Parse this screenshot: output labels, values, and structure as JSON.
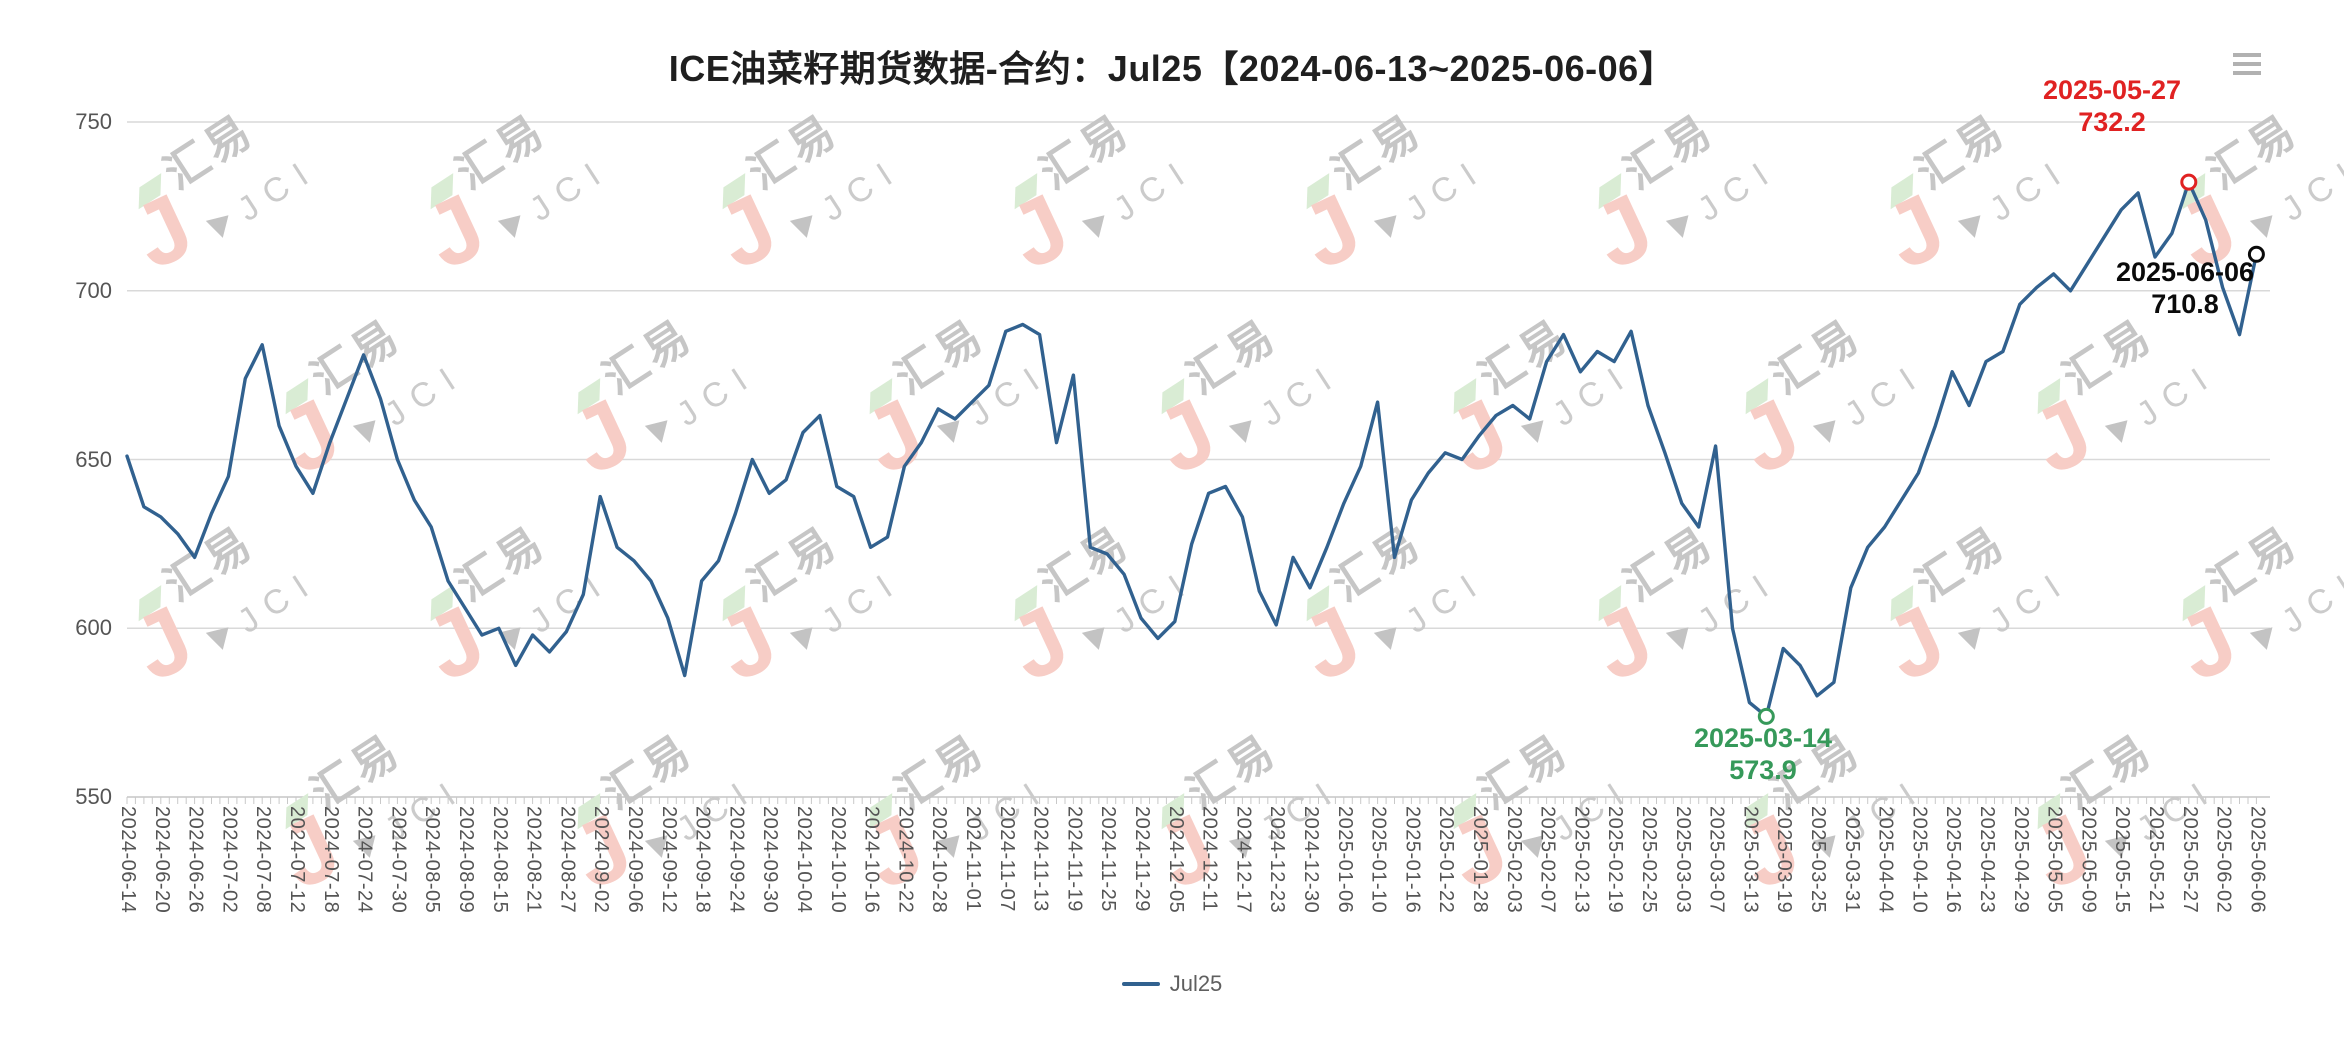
{
  "title": "ICE油菜籽期货数据-合约：Jul25【2024-06-13~2025-06-06】",
  "icons": {
    "menu": "hamburger-menu-icon"
  },
  "watermark": {
    "cn": "汇易",
    "en": "JCI"
  },
  "legend": {
    "label": "Jul25",
    "color": "#31618f"
  },
  "annotations": {
    "max": {
      "date": "2025-05-27",
      "value": 732.2,
      "color": "#e02222"
    },
    "min": {
      "date": "2025-03-14",
      "value": 573.9,
      "color": "#36995a"
    },
    "last": {
      "date": "2025-06-06",
      "value": 710.8,
      "color": "#0a0a0a"
    }
  },
  "chart_data": {
    "type": "line",
    "series_name": "Jul25",
    "title": "ICE油菜籽期货数据-合约：Jul25【2024-06-13~2025-06-06】",
    "ylim": [
      550,
      750
    ],
    "yticks": [
      750,
      700,
      650,
      600,
      550
    ],
    "grid": true,
    "legend_position": "bottom",
    "line_color": "#31618f",
    "x_tick_labels": [
      "2024-06-14",
      "2024-06-20",
      "2024-06-26",
      "2024-07-02",
      "2024-07-08",
      "2024-07-12",
      "2024-07-18",
      "2024-07-24",
      "2024-07-30",
      "2024-08-05",
      "2024-08-09",
      "2024-08-15",
      "2024-08-21",
      "2024-08-27",
      "2024-09-02",
      "2024-09-06",
      "2024-09-12",
      "2024-09-18",
      "2024-09-24",
      "2024-09-30",
      "2024-10-04",
      "2024-10-10",
      "2024-10-16",
      "2024-10-22",
      "2024-10-28",
      "2024-11-01",
      "2024-11-07",
      "2024-11-13",
      "2024-11-19",
      "2024-11-25",
      "2024-11-29",
      "2024-12-05",
      "2024-12-11",
      "2024-12-17",
      "2024-12-23",
      "2024-12-30",
      "2025-01-06",
      "2025-01-10",
      "2025-01-16",
      "2025-01-22",
      "2025-01-28",
      "2025-02-03",
      "2025-02-07",
      "2025-02-13",
      "2025-02-19",
      "2025-02-25",
      "2025-03-03",
      "2025-03-07",
      "2025-03-13",
      "2025-03-19",
      "2025-03-25",
      "2025-03-31",
      "2025-04-04",
      "2025-04-10",
      "2025-04-16",
      "2025-04-23",
      "2025-04-29",
      "2025-05-05",
      "2025-05-09",
      "2025-05-15",
      "2025-05-21",
      "2025-05-27",
      "2025-06-02",
      "2025-06-06"
    ],
    "points": [
      {
        "d": "2024-06-14",
        "v": 651
      },
      {
        "d": "2024-06-18",
        "v": 636
      },
      {
        "d": "2024-06-20",
        "v": 633
      },
      {
        "d": "2024-06-24",
        "v": 628
      },
      {
        "d": "2024-06-26",
        "v": 621
      },
      {
        "d": "2024-06-28",
        "v": 634
      },
      {
        "d": "2024-07-02",
        "v": 645
      },
      {
        "d": "2024-07-04",
        "v": 674
      },
      {
        "d": "2024-07-08",
        "v": 684
      },
      {
        "d": "2024-07-10",
        "v": 660
      },
      {
        "d": "2024-07-12",
        "v": 648
      },
      {
        "d": "2024-07-16",
        "v": 640
      },
      {
        "d": "2024-07-18",
        "v": 655
      },
      {
        "d": "2024-07-22",
        "v": 668
      },
      {
        "d": "2024-07-24",
        "v": 681
      },
      {
        "d": "2024-07-26",
        "v": 668
      },
      {
        "d": "2024-07-30",
        "v": 650
      },
      {
        "d": "2024-08-01",
        "v": 638
      },
      {
        "d": "2024-08-05",
        "v": 630
      },
      {
        "d": "2024-08-07",
        "v": 614
      },
      {
        "d": "2024-08-09",
        "v": 606
      },
      {
        "d": "2024-08-13",
        "v": 598
      },
      {
        "d": "2024-08-15",
        "v": 600
      },
      {
        "d": "2024-08-19",
        "v": 589
      },
      {
        "d": "2024-08-21",
        "v": 598
      },
      {
        "d": "2024-08-23",
        "v": 593
      },
      {
        "d": "2024-08-27",
        "v": 599
      },
      {
        "d": "2024-08-29",
        "v": 610
      },
      {
        "d": "2024-09-02",
        "v": 639
      },
      {
        "d": "2024-09-04",
        "v": 624
      },
      {
        "d": "2024-09-06",
        "v": 620
      },
      {
        "d": "2024-09-10",
        "v": 614
      },
      {
        "d": "2024-09-12",
        "v": 603
      },
      {
        "d": "2024-09-16",
        "v": 586
      },
      {
        "d": "2024-09-18",
        "v": 614
      },
      {
        "d": "2024-09-20",
        "v": 620
      },
      {
        "d": "2024-09-24",
        "v": 634
      },
      {
        "d": "2024-09-26",
        "v": 650
      },
      {
        "d": "2024-09-30",
        "v": 640
      },
      {
        "d": "2024-10-02",
        "v": 644
      },
      {
        "d": "2024-10-04",
        "v": 658
      },
      {
        "d": "2024-10-08",
        "v": 663
      },
      {
        "d": "2024-10-10",
        "v": 642
      },
      {
        "d": "2024-10-14",
        "v": 639
      },
      {
        "d": "2024-10-16",
        "v": 624
      },
      {
        "d": "2024-10-18",
        "v": 627
      },
      {
        "d": "2024-10-22",
        "v": 648
      },
      {
        "d": "2024-10-24",
        "v": 655
      },
      {
        "d": "2024-10-28",
        "v": 665
      },
      {
        "d": "2024-10-30",
        "v": 662
      },
      {
        "d": "2024-11-01",
        "v": 667
      },
      {
        "d": "2024-11-05",
        "v": 672
      },
      {
        "d": "2024-11-07",
        "v": 688
      },
      {
        "d": "2024-11-11",
        "v": 690
      },
      {
        "d": "2024-11-13",
        "v": 687
      },
      {
        "d": "2024-11-15",
        "v": 655
      },
      {
        "d": "2024-11-19",
        "v": 675
      },
      {
        "d": "2024-11-21",
        "v": 624
      },
      {
        "d": "2024-11-25",
        "v": 622
      },
      {
        "d": "2024-11-27",
        "v": 616
      },
      {
        "d": "2024-11-29",
        "v": 603
      },
      {
        "d": "2024-12-03",
        "v": 597
      },
      {
        "d": "2024-12-05",
        "v": 602
      },
      {
        "d": "2024-12-09",
        "v": 625
      },
      {
        "d": "2024-12-11",
        "v": 640
      },
      {
        "d": "2024-12-13",
        "v": 642
      },
      {
        "d": "2024-12-17",
        "v": 633
      },
      {
        "d": "2024-12-19",
        "v": 611
      },
      {
        "d": "2024-12-23",
        "v": 601
      },
      {
        "d": "2024-12-27",
        "v": 621
      },
      {
        "d": "2024-12-30",
        "v": 612
      },
      {
        "d": "2025-01-02",
        "v": 624
      },
      {
        "d": "2025-01-06",
        "v": 637
      },
      {
        "d": "2025-01-08",
        "v": 648
      },
      {
        "d": "2025-01-10",
        "v": 667
      },
      {
        "d": "2025-01-14",
        "v": 621
      },
      {
        "d": "2025-01-16",
        "v": 638
      },
      {
        "d": "2025-01-20",
        "v": 646
      },
      {
        "d": "2025-01-22",
        "v": 652
      },
      {
        "d": "2025-01-24",
        "v": 650
      },
      {
        "d": "2025-01-28",
        "v": 657
      },
      {
        "d": "2025-01-30",
        "v": 663
      },
      {
        "d": "2025-02-03",
        "v": 666
      },
      {
        "d": "2025-02-05",
        "v": 662
      },
      {
        "d": "2025-02-07",
        "v": 679
      },
      {
        "d": "2025-02-11",
        "v": 687
      },
      {
        "d": "2025-02-13",
        "v": 676
      },
      {
        "d": "2025-02-17",
        "v": 682
      },
      {
        "d": "2025-02-19",
        "v": 679
      },
      {
        "d": "2025-02-21",
        "v": 688
      },
      {
        "d": "2025-02-25",
        "v": 666
      },
      {
        "d": "2025-02-27",
        "v": 652
      },
      {
        "d": "2025-03-03",
        "v": 637
      },
      {
        "d": "2025-03-05",
        "v": 630
      },
      {
        "d": "2025-03-07",
        "v": 654
      },
      {
        "d": "2025-03-11",
        "v": 600
      },
      {
        "d": "2025-03-13",
        "v": 578
      },
      {
        "d": "2025-03-14",
        "v": 573.9
      },
      {
        "d": "2025-03-19",
        "v": 594
      },
      {
        "d": "2025-03-21",
        "v": 589
      },
      {
        "d": "2025-03-25",
        "v": 580
      },
      {
        "d": "2025-03-27",
        "v": 584
      },
      {
        "d": "2025-03-31",
        "v": 612
      },
      {
        "d": "2025-04-02",
        "v": 624
      },
      {
        "d": "2025-04-04",
        "v": 630
      },
      {
        "d": "2025-04-08",
        "v": 638
      },
      {
        "d": "2025-04-10",
        "v": 646
      },
      {
        "d": "2025-04-14",
        "v": 660
      },
      {
        "d": "2025-04-16",
        "v": 676
      },
      {
        "d": "2025-04-21",
        "v": 666
      },
      {
        "d": "2025-04-23",
        "v": 679
      },
      {
        "d": "2025-04-25",
        "v": 682
      },
      {
        "d": "2025-04-29",
        "v": 696
      },
      {
        "d": "2025-05-01",
        "v": 701
      },
      {
        "d": "2025-05-05",
        "v": 705
      },
      {
        "d": "2025-05-07",
        "v": 700
      },
      {
        "d": "2025-05-09",
        "v": 708
      },
      {
        "d": "2025-05-13",
        "v": 716
      },
      {
        "d": "2025-05-15",
        "v": 724
      },
      {
        "d": "2025-05-16",
        "v": 729
      },
      {
        "d": "2025-05-21",
        "v": 710
      },
      {
        "d": "2025-05-23",
        "v": 717
      },
      {
        "d": "2025-05-27",
        "v": 732.2
      },
      {
        "d": "2025-05-29",
        "v": 721
      },
      {
        "d": "2025-06-02",
        "v": 701
      },
      {
        "d": "2025-06-04",
        "v": 687
      },
      {
        "d": "2025-06-06",
        "v": 710.8
      }
    ]
  }
}
